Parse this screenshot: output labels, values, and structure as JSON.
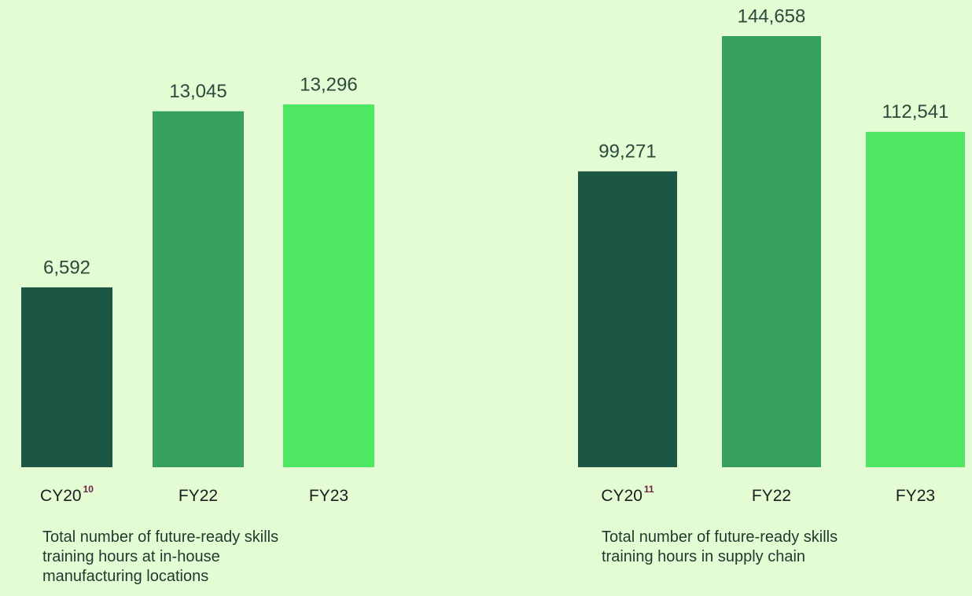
{
  "chart_data": [
    {
      "type": "bar",
      "categories": [
        "CY20",
        "FY22",
        "FY23"
      ],
      "category_notes": [
        "10",
        null,
        null
      ],
      "values": [
        6592,
        13045,
        13296
      ],
      "value_labels": [
        "6,592",
        "13,045",
        "13,296"
      ],
      "colors": [
        "#1c5645",
        "#35a060",
        "#4fe862"
      ],
      "caption": "Total number of future-ready skills training hours at in-house manufacturing locations"
    },
    {
      "type": "bar",
      "categories": [
        "CY20",
        "FY22",
        "FY23"
      ],
      "category_notes": [
        "11",
        null,
        null
      ],
      "values": [
        99271,
        144658,
        112541
      ],
      "value_labels": [
        "99,271",
        "144,658",
        "112,541"
      ],
      "colors": [
        "#1c5645",
        "#35a060",
        "#4fe862"
      ],
      "caption": "Total number of future-ready skills training hours in supply chain"
    }
  ]
}
